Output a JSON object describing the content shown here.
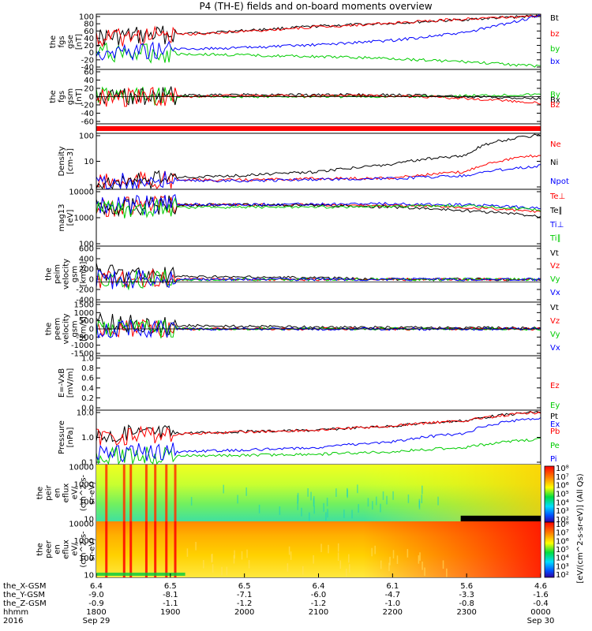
{
  "title": "P4 (TH-E) fields and on-board moments overview",
  "panels": [
    {
      "id": "fgs-gse",
      "ylabel_lines": [
        "the",
        "fgs",
        "gse",
        "[nT]"
      ],
      "yticks": [
        "100",
        "80",
        "60",
        "40",
        "20",
        "0",
        "-20",
        "-40"
      ],
      "legend": [
        {
          "label": "Bt",
          "color": "#000000"
        },
        {
          "label": "bz",
          "color": "#ff0000"
        },
        {
          "label": "by",
          "color": "#00cc00"
        },
        {
          "label": "bx",
          "color": "#0000ff"
        }
      ]
    },
    {
      "id": "fgs-gsm",
      "ylabel_lines": [
        "the",
        "fgs",
        "gsm",
        "[nT]"
      ],
      "yticks": [
        "60",
        "40",
        "20",
        "0",
        "-20",
        "-40",
        "-60"
      ],
      "legend": [
        {
          "label": "By",
          "color": "#00cc00"
        },
        {
          "label": "Bx",
          "color": "#000000"
        },
        {
          "label": "Bz",
          "color": "#ff0000"
        }
      ]
    },
    {
      "id": "mode-bar",
      "ylabel_lines": [],
      "yticks": [],
      "legend": []
    },
    {
      "id": "density",
      "ylabel_lines": [
        "Density",
        "[cm-3]"
      ],
      "yticks": [
        "100",
        "10",
        "1"
      ],
      "legend": [
        {
          "label": "Ne",
          "color": "#ff0000"
        },
        {
          "label": "Ni",
          "color": "#000000"
        },
        {
          "label": "Npot",
          "color": "#0000ff"
        }
      ]
    },
    {
      "id": "temperature",
      "ylabel_lines": [
        "mag13",
        "[eV]"
      ],
      "yticks": [
        "10000",
        "1000",
        "100"
      ],
      "legend": [
        {
          "label": "Te⊥",
          "color": "#ff0000"
        },
        {
          "label": "Te∥",
          "color": "#000000"
        },
        {
          "label": "Ti⊥",
          "color": "#0000ff"
        },
        {
          "label": "Ti∥",
          "color": "#00cc00"
        }
      ]
    },
    {
      "id": "peim-velocity",
      "ylabel_lines": [
        "the",
        "peim",
        "velocity",
        "gsm",
        "[km/s]"
      ],
      "yticks": [
        "600",
        "400",
        "200",
        "0",
        "-200",
        "-400"
      ],
      "legend": [
        {
          "label": "Vt",
          "color": "#000000"
        },
        {
          "label": "Vz",
          "color": "#ff0000"
        },
        {
          "label": "Vy",
          "color": "#00cc00"
        },
        {
          "label": "Vx",
          "color": "#0000ff"
        }
      ]
    },
    {
      "id": "peem-velocity",
      "ylabel_lines": [
        "the",
        "peem",
        "velocity",
        "gsm",
        "[km/s]"
      ],
      "yticks": [
        "1500",
        "1000",
        "500",
        "0",
        "-500",
        "-1000",
        "-1500"
      ],
      "legend": [
        {
          "label": "Vt",
          "color": "#000000"
        },
        {
          "label": "Vz",
          "color": "#ff0000"
        },
        {
          "label": "Vy",
          "color": "#00cc00"
        },
        {
          "label": "Vx",
          "color": "#0000ff"
        }
      ]
    },
    {
      "id": "efield",
      "ylabel_lines": [
        "E=-VxB",
        "[mV/m]"
      ],
      "yticks": [
        "1.0",
        "0.8",
        "0.6",
        "0.4",
        "0.2",
        "0.0"
      ],
      "legend": [
        {
          "label": "Ez",
          "color": "#ff0000"
        },
        {
          "label": "Ey",
          "color": "#00cc00"
        },
        {
          "label": "Ex",
          "color": "#0000ff"
        }
      ]
    },
    {
      "id": "pressure",
      "ylabel_lines": [
        "Pressure",
        "[nPa]"
      ],
      "yticks": [
        "10.0",
        "1.0",
        "0.1"
      ],
      "legend": [
        {
          "label": "Pt",
          "color": "#000000"
        },
        {
          "label": "Pb",
          "color": "#ff0000"
        },
        {
          "label": "Pe",
          "color": "#00cc00"
        },
        {
          "label": "Pi",
          "color": "#0000ff"
        }
      ]
    },
    {
      "id": "peir-eflux",
      "ylabel_lines": [
        "the",
        "peir",
        "en",
        "eflux",
        "eV/",
        "(cm^2-s-",
        "sr-eV)"
      ],
      "yticks": [
        "10000",
        "1000",
        "100",
        "10"
      ],
      "legend": []
    },
    {
      "id": "peer-eflux",
      "ylabel_lines": [
        "the",
        "peer",
        "en",
        "eflux",
        "eV/",
        "(cm^2-s-",
        "sr-eV)"
      ],
      "yticks": [
        "10000",
        "1000",
        "100",
        "10"
      ],
      "legend": []
    }
  ],
  "colorbar": {
    "ticks": [
      "10^8",
      "10^7",
      "10^6",
      "10^5",
      "10^4",
      "10^3",
      "10^2"
    ],
    "tick_display": [
      "10⁸",
      "10⁷",
      "10⁶",
      "10⁵",
      "10⁴",
      "10³",
      "10²"
    ],
    "label": "[eV/(cm^2-s-sr-eV)] (All Qs)"
  },
  "ephemeris": {
    "row_labels": [
      "the_X-GSM",
      "the_Y-GSM",
      "the_Z-GSM",
      "hhmm",
      "2016"
    ],
    "columns": [
      {
        "values": [
          "6.4",
          "-9.0",
          "-0.9",
          "1800",
          "Sep 29"
        ]
      },
      {
        "values": [
          "6.5",
          "-8.1",
          "-1.1",
          "1900",
          ""
        ]
      },
      {
        "values": [
          "6.5",
          "-7.1",
          "-1.2",
          "2000",
          ""
        ]
      },
      {
        "values": [
          "6.4",
          "-6.0",
          "-1.2",
          "2100",
          ""
        ]
      },
      {
        "values": [
          "6.1",
          "-4.7",
          "-1.0",
          "2200",
          ""
        ]
      },
      {
        "values": [
          "5.6",
          "-3.3",
          "-0.8",
          "2300",
          ""
        ]
      },
      {
        "values": [
          "4.6",
          "-1.6",
          "-0.4",
          "0000",
          "Sep 30"
        ]
      }
    ]
  },
  "chart_data": {
    "type": "line",
    "title": "P4 (TH-E) fields and on-board moments overview",
    "x": [
      "1800",
      "1900",
      "2000",
      "2100",
      "2200",
      "2300",
      "0000"
    ],
    "x_date_labels": [
      "Sep 29",
      "",
      "",
      "",
      "",
      "",
      "Sep 30"
    ],
    "panels": [
      {
        "ylabel": "the fgs gse [nT]",
        "ylim": [
          -40,
          100
        ],
        "series": [
          {
            "name": "Bt",
            "color": "#000000",
            "values": [
              40,
              50,
              60,
              72,
              80,
              90,
              100
            ]
          },
          {
            "name": "bz",
            "color": "#ff0000",
            "values": [
              38,
              48,
              58,
              70,
              80,
              92,
              100
            ]
          },
          {
            "name": "by",
            "color": "#00cc00",
            "values": [
              2,
              -2,
              -6,
              -10,
              -15,
              -24,
              -36
            ]
          },
          {
            "name": "bx",
            "color": "#0000ff",
            "values": [
              2,
              10,
              14,
              22,
              34,
              55,
              100
            ]
          }
        ]
      },
      {
        "ylabel": "the fgs gsm [nT]",
        "ylim": [
          -60,
          60
        ],
        "series": [
          {
            "name": "By",
            "color": "#00cc00",
            "values": [
              2,
              0,
              0,
              0,
              0,
              2,
              5
            ]
          },
          {
            "name": "Bx",
            "color": "#000000",
            "values": [
              0,
              2,
              4,
              4,
              4,
              0,
              -5
            ]
          },
          {
            "name": "Bz",
            "color": "#ff0000",
            "values": [
              -2,
              0,
              2,
              2,
              2,
              -4,
              -15
            ]
          }
        ]
      },
      {
        "ylabel": "Density [cm-3]",
        "scale": "log",
        "ylim": [
          0.5,
          200
        ],
        "series": [
          {
            "name": "Ne",
            "color": "#ff0000",
            "values": [
              0.8,
              1.2,
              1.2,
              1.4,
              1.5,
              3,
              20
            ]
          },
          {
            "name": "Ni",
            "color": "#000000",
            "values": [
              0.8,
              1.5,
              2,
              3,
              7,
              20,
              200
            ]
          },
          {
            "name": "Npot",
            "color": "#0000ff",
            "values": [
              0.8,
              1.1,
              1.1,
              1.3,
              1.4,
              2,
              6
            ]
          }
        ]
      },
      {
        "ylabel": "mag13 [eV]",
        "scale": "log",
        "ylim": [
          50,
          10000
        ],
        "series": [
          {
            "name": "Te⊥",
            "color": "#ff0000",
            "values": [
              2000,
              2500,
              2500,
              2500,
              2400,
              2000,
              1200
            ]
          },
          {
            "name": "Te∥",
            "color": "#000000",
            "values": [
              2000,
              2500,
              2500,
              2400,
              2000,
              1400,
              800
            ]
          },
          {
            "name": "Ti⊥",
            "color": "#0000ff",
            "values": [
              2200,
              2600,
              2600,
              2700,
              2800,
              2500,
              1800
            ]
          },
          {
            "name": "Ti∥",
            "color": "#00cc00",
            "values": [
              1500,
              2000,
              2000,
              2000,
              2200,
              2300,
              1500
            ]
          }
        ]
      },
      {
        "ylabel": "the peim velocity gsm [km/s]",
        "ylim": [
          -400,
          600
        ],
        "series": [
          {
            "name": "Vt",
            "color": "#000000",
            "values": [
              150,
              60,
              40,
              30,
              0,
              0,
              0
            ]
          },
          {
            "name": "Vz",
            "color": "#ff0000",
            "values": [
              0,
              0,
              0,
              0,
              0,
              0,
              0
            ]
          },
          {
            "name": "Vy",
            "color": "#00cc00",
            "values": [
              0,
              0,
              0,
              0,
              0,
              0,
              0
            ]
          },
          {
            "name": "Vx",
            "color": "#0000ff",
            "values": [
              0,
              0,
              0,
              0,
              0,
              0,
              0
            ]
          }
        ]
      },
      {
        "ylabel": "the peem velocity gsm [km/s]",
        "ylim": [
          -1500,
          1500
        ],
        "series": [
          {
            "name": "Vt",
            "color": "#000000",
            "values": [
              400,
              200,
              150,
              100,
              80,
              60,
              50
            ]
          },
          {
            "name": "Vz",
            "color": "#ff0000",
            "values": [
              0,
              0,
              0,
              0,
              0,
              0,
              0
            ]
          },
          {
            "name": "Vy",
            "color": "#00cc00",
            "values": [
              0,
              0,
              0,
              0,
              0,
              0,
              0
            ]
          },
          {
            "name": "Vx",
            "color": "#0000ff",
            "values": [
              0,
              0,
              0,
              0,
              0,
              0,
              0
            ]
          }
        ]
      },
      {
        "ylabel": "E=-VxB [mV/m]",
        "ylim": [
          0.0,
          1.0
        ],
        "series": []
      },
      {
        "ylabel": "Pressure [nPa]",
        "scale": "log",
        "ylim": [
          0.05,
          30
        ],
        "series": [
          {
            "name": "Pt",
            "color": "#000000",
            "values": [
              1.5,
              2,
              2.5,
              3,
              5,
              10,
              30
            ]
          },
          {
            "name": "Pb",
            "color": "#ff0000",
            "values": [
              1.2,
              1.8,
              2.4,
              3,
              5,
              10,
              28
            ]
          },
          {
            "name": "Pe",
            "color": "#00cc00",
            "values": [
              0.12,
              0.12,
              0.13,
              0.15,
              0.2,
              0.35,
              1
            ]
          },
          {
            "name": "Pi",
            "color": "#0000ff",
            "values": [
              0.15,
              0.2,
              0.25,
              0.35,
              0.7,
              2,
              14
            ]
          }
        ]
      }
    ]
  }
}
